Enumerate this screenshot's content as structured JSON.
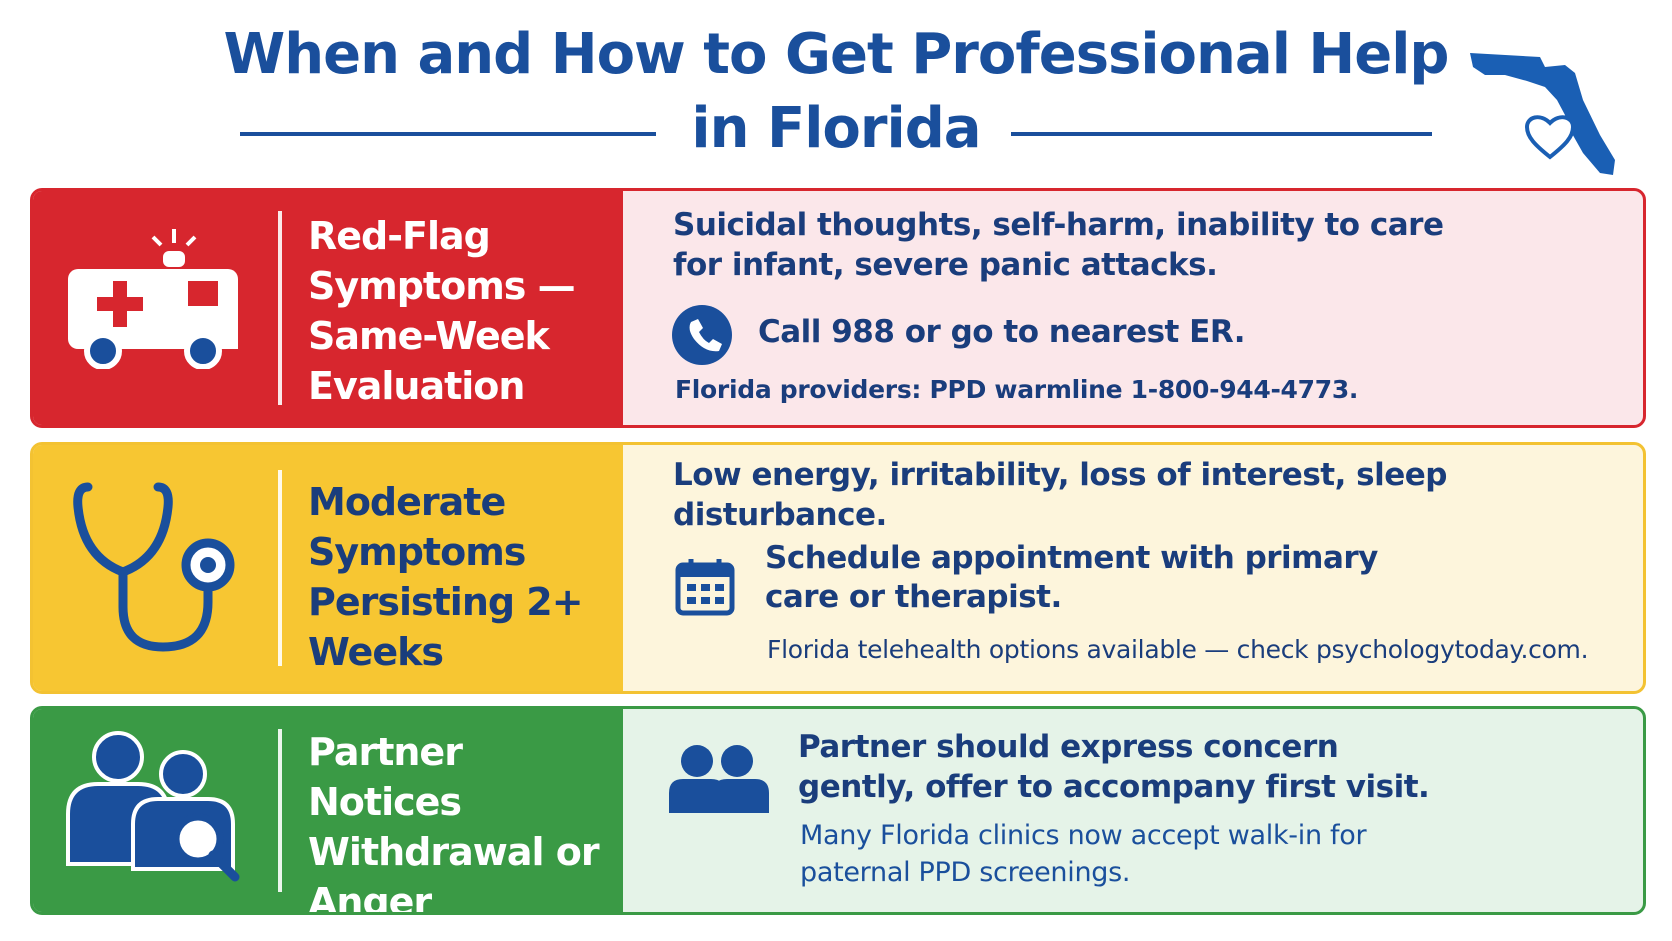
{
  "header": {
    "title": [
      "When and How to Get Professional Help",
      "in Florida"
    ]
  },
  "rows": [
    {
      "label": "Red-Flag Symptoms — Same-Week Evaluation",
      "symptoms": "Suicidal thoughts, self-harm, inability to care for infant, severe panic attacks.",
      "action": "Call 988 or go to nearest ER.",
      "note": "Florida providers: PPD warmline 1-800-944-4773."
    },
    {
      "label": "Moderate Symptoms Persisting 2+ Weeks",
      "symptoms": "Low energy, irritability, loss of interest, sleep disturbance.",
      "action": "Schedule appointment with primary care or therapist.",
      "note": "Florida telehealth options available — check psychologytoday.com."
    },
    {
      "label": "Partner Notices Withdrawal or Anger",
      "symptoms": "Partner should express concern gently, offer to accompany first visit.",
      "note": "Many Florida clinics now accept walk-in for paternal PPD screenings."
    }
  ]
}
